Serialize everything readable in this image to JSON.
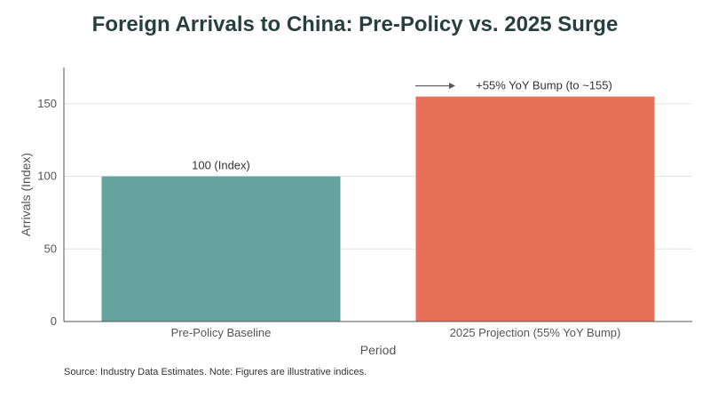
{
  "chart_data": {
    "type": "bar",
    "title": "Foreign Arrivals to China: Pre-Policy vs. 2025 Surge",
    "categories": [
      "Pre-Policy Baseline",
      "2025 Projection (55% YoY Bump)"
    ],
    "values": [
      100,
      155
    ],
    "data_labels": [
      "100 (Index)",
      "+55% YoY Bump (to ~155)"
    ],
    "bar_colors": [
      "#66a29e",
      "#e87056"
    ],
    "xlabel": "Period",
    "ylabel": "Arrivals (Index)",
    "ylim": [
      0,
      175
    ],
    "yticks": [
      0,
      50,
      100,
      150
    ],
    "grid": true,
    "annotation": {
      "type": "arrow",
      "target_category": "2025 Projection (55% YoY Bump)"
    }
  },
  "footer": {
    "source": "Source: Industry Data Estimates. Note: Figures are illustrative indices."
  },
  "colors": {
    "title": "#27403f",
    "axis": "#555555",
    "grid": "#e2e2e2"
  }
}
